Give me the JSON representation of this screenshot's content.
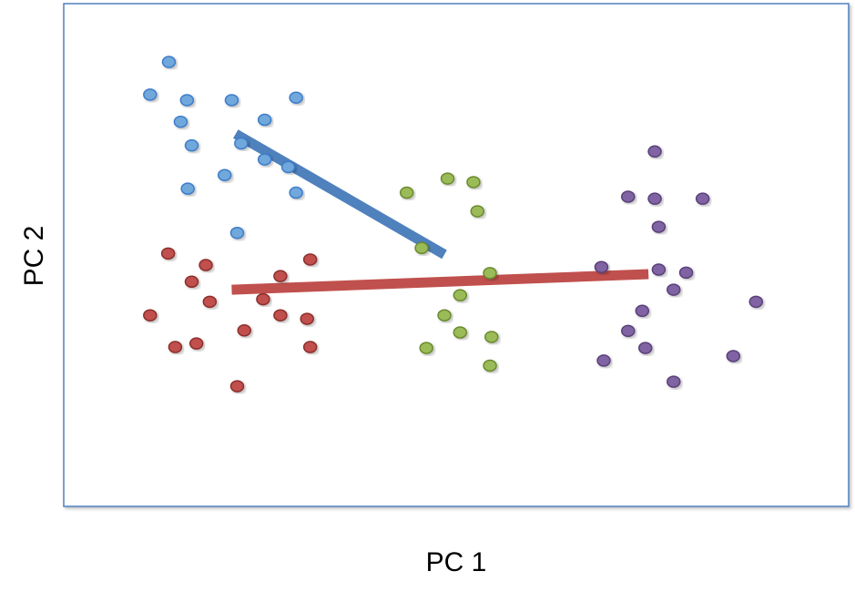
{
  "chart_data": {
    "type": "scatter",
    "title": "",
    "xlabel": "PC 1",
    "ylabel": "PC 2",
    "xlim": [
      0,
      100
    ],
    "ylim": [
      0,
      100
    ],
    "grid": false,
    "legend": "none",
    "frame_color": "#4f81bd",
    "series": [
      {
        "color": "#6fa8dc",
        "stroke": "#3d7cc9",
        "points": [
          [
            13.4,
            88.4
          ],
          [
            11.0,
            81.9
          ],
          [
            15.7,
            80.8
          ],
          [
            21.4,
            80.8
          ],
          [
            29.6,
            81.3
          ],
          [
            14.9,
            76.5
          ],
          [
            25.6,
            76.9
          ],
          [
            16.3,
            71.8
          ],
          [
            22.6,
            72.2
          ],
          [
            25.6,
            69.0
          ],
          [
            28.6,
            67.5
          ],
          [
            20.5,
            65.9
          ],
          [
            15.8,
            63.2
          ],
          [
            29.6,
            62.4
          ],
          [
            22.1,
            54.4
          ]
        ]
      },
      {
        "color": "#c0504d",
        "stroke": "#8c2f2c",
        "points": [
          [
            13.3,
            50.3
          ],
          [
            18.1,
            48.0
          ],
          [
            31.4,
            49.1
          ],
          [
            16.3,
            44.7
          ],
          [
            27.6,
            45.8
          ],
          [
            18.6,
            40.7
          ],
          [
            25.4,
            41.2
          ],
          [
            11.0,
            38.0
          ],
          [
            27.6,
            38.0
          ],
          [
            31.0,
            37.3
          ],
          [
            23.0,
            35.0
          ],
          [
            14.2,
            31.7
          ],
          [
            16.9,
            32.4
          ],
          [
            31.4,
            31.7
          ],
          [
            22.1,
            23.9
          ]
        ]
      },
      {
        "color": "#9bbb59",
        "stroke": "#6b8a2d",
        "points": [
          [
            43.7,
            62.4
          ],
          [
            48.9,
            65.2
          ],
          [
            52.2,
            64.5
          ],
          [
            52.7,
            58.7
          ],
          [
            45.6,
            51.4
          ],
          [
            54.3,
            46.4
          ],
          [
            50.5,
            42.0
          ],
          [
            48.5,
            38.0
          ],
          [
            50.5,
            34.6
          ],
          [
            54.5,
            33.7
          ],
          [
            46.2,
            31.5
          ],
          [
            54.3,
            28.0
          ]
        ]
      },
      {
        "color": "#8064a2",
        "stroke": "#5a3f7a",
        "points": [
          [
            75.3,
            70.6
          ],
          [
            71.9,
            61.6
          ],
          [
            75.3,
            61.2
          ],
          [
            81.4,
            61.2
          ],
          [
            75.8,
            55.6
          ],
          [
            68.5,
            47.6
          ],
          [
            75.8,
            47.1
          ],
          [
            79.3,
            46.5
          ],
          [
            77.7,
            43.1
          ],
          [
            88.2,
            40.7
          ],
          [
            73.7,
            38.9
          ],
          [
            71.9,
            34.9
          ],
          [
            74.1,
            31.5
          ],
          [
            85.3,
            29.9
          ],
          [
            68.8,
            29.0
          ],
          [
            77.7,
            24.8
          ]
        ]
      }
    ],
    "lines": [
      {
        "color": "#4f81bd",
        "from": [
          21.9,
          74.1
        ],
        "to": [
          48.5,
          50.1
        ]
      },
      {
        "color": "#c0504d",
        "from": [
          21.4,
          43.1
        ],
        "to": [
          74.5,
          46.2
        ]
      }
    ]
  }
}
